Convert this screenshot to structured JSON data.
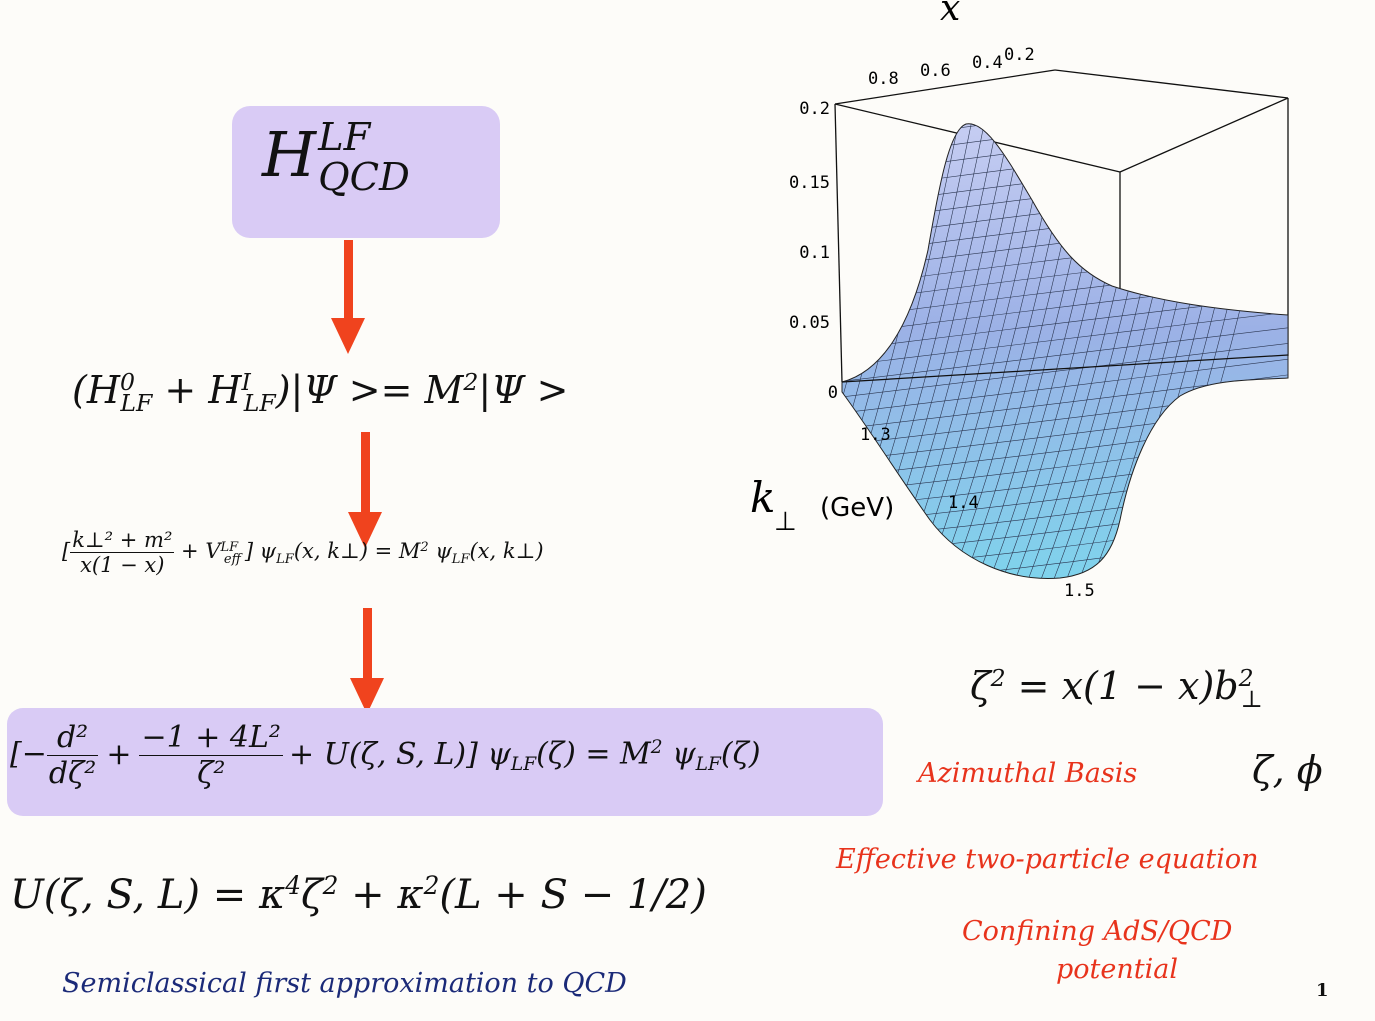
{
  "hamiltonian": {
    "base": "H",
    "sup": "LF",
    "sub": "QCD"
  },
  "eq1": {
    "lhs": "(H",
    "s1sup": "0",
    "s1sub": "LF",
    "plus": " + H",
    "s2sup": "I",
    "s2sub": "LF",
    "rest": ")|Ψ >= M",
    "msup": "2",
    "tail": "|Ψ >"
  },
  "eq2": {
    "open": "[",
    "num": "k⊥² + m²",
    "den": "x(1 − x)",
    "veff": " + V",
    "veff_sup": "LF",
    "veff_sub": "eff",
    "mid": "] ψ",
    "psi_sub": "LF",
    "arg": "(x, k⊥) = M",
    "msup": "2",
    "tail": " ψ",
    "tail_sub": "LF",
    "tail_arg": "(x, k⊥)"
  },
  "eq3": {
    "open": "[−",
    "num1": "d²",
    "den1": "dζ²",
    "plus": "+",
    "num2": "−1 + 4L²",
    "den2": "ζ²",
    "mid": "+ U(ζ, S, L)] ψ",
    "psi_sub": "LF",
    "arg": "(ζ) = M",
    "msup": "2",
    "tail": " ψ",
    "tail_sub": "LF",
    "tail_arg": "(ζ)"
  },
  "eq4": {
    "text": "U(ζ, S, L) = κ",
    "s1": "4",
    "mid": "ζ",
    "s2": "2",
    "rest": " + κ",
    "s3": "2",
    "tail": "(L + S − 1/2)"
  },
  "zeta_eq": {
    "lhs": "ζ",
    "sup": "2",
    "rhs": " = x(1 − x)b",
    "bsup": "2",
    "bsub": "⊥"
  },
  "azimuthal": {
    "label": "Azimuthal Basis",
    "vars": "ζ, ϕ"
  },
  "labels": {
    "effective": "Effective two-particle equation",
    "confining_l1": "Confining AdS/QCD",
    "confining_l2": "potential",
    "semiclassical": "Semiclassical first approximation to QCD"
  },
  "page_number": "1",
  "plot": {
    "x_axis_label": "x",
    "x_ticks": [
      "0.8",
      "0.6",
      "0.4",
      "0.2"
    ],
    "z_ticks": [
      "0.2",
      "0.15",
      "0.1",
      "0.05",
      "0"
    ],
    "k_ticks": [
      "1.3",
      "1.4",
      "1.5"
    ],
    "k_label": "k",
    "k_sub": "⊥",
    "k_unit": "(GeV)"
  },
  "colors": {
    "arrow": "#f0431e",
    "box": "#d9cbf5",
    "red_text": "#e8331c",
    "blue_text": "#1b2a78",
    "surface_high": "#9aaee8",
    "surface_low": "#7fd8ee"
  }
}
